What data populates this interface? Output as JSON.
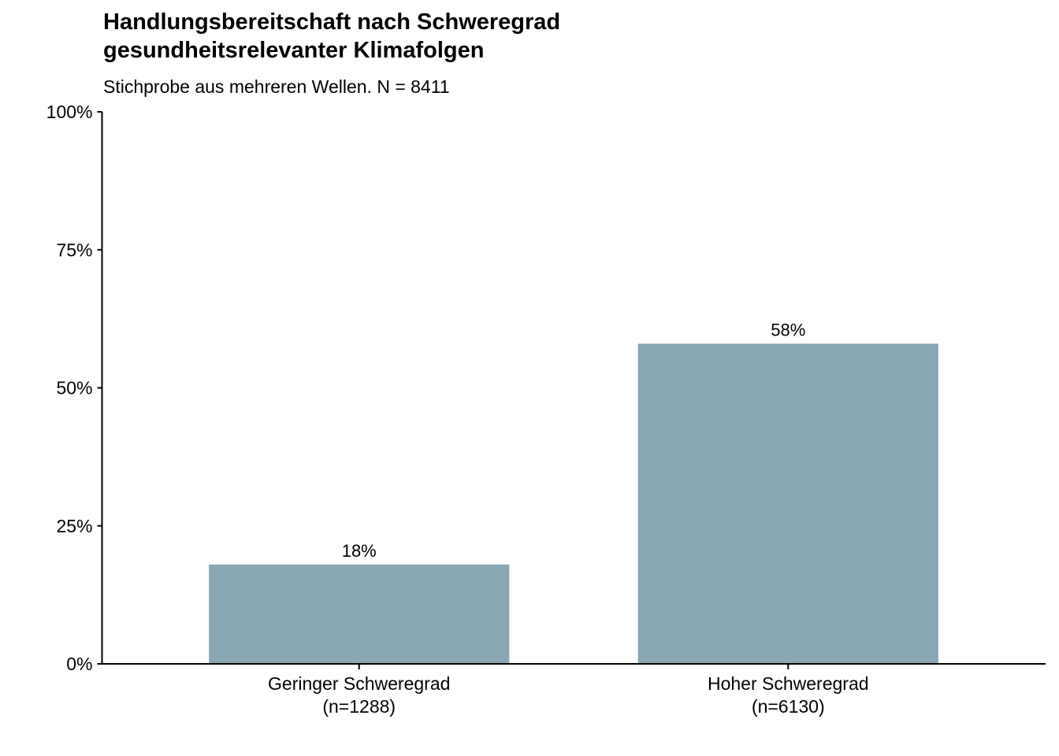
{
  "chart_data": {
    "type": "bar",
    "title_lines": [
      "Handlungsbereitschaft nach Schweregrad",
      "gesundheitsrelevanter Klimafolgen"
    ],
    "subtitle": "Stichprobe aus mehreren Wellen. N = 8411",
    "categories": [
      [
        "Geringer Schweregrad",
        "(n=1288)"
      ],
      [
        "Hoher Schweregrad",
        "(n=6130)"
      ]
    ],
    "values": [
      18,
      58
    ],
    "data_labels": [
      "18%",
      "58%"
    ],
    "yticks": [
      0,
      25,
      50,
      75,
      100
    ],
    "ytick_labels": [
      "0%",
      "25%",
      "50%",
      "75%",
      "100%"
    ],
    "ylim": [
      0,
      100
    ],
    "xlabel": "",
    "ylabel": "",
    "grid": false,
    "bar_color": "#8aa6b3",
    "axis_color": "#000000"
  }
}
